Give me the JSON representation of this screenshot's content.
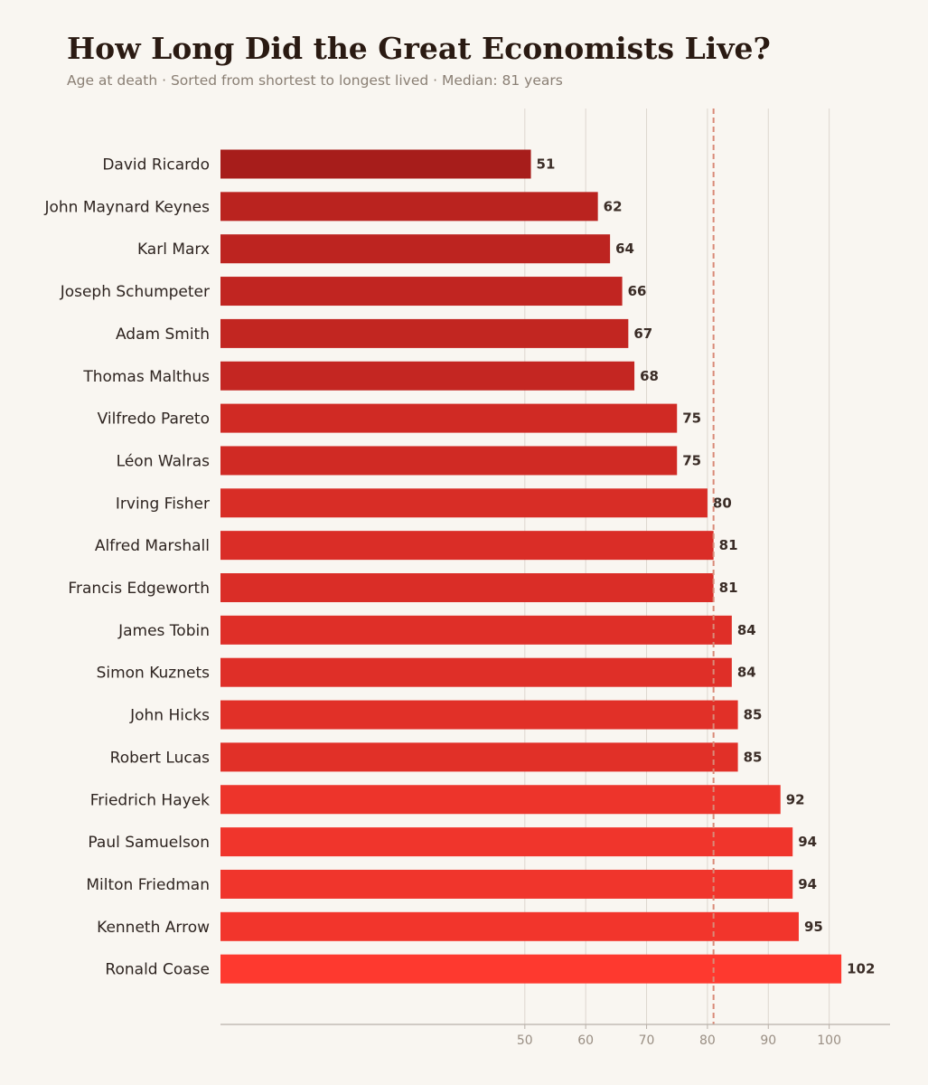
{
  "header": {
    "title": "How Long Did the Great Economists Live?",
    "subtitle": "Age at death  ·  Sorted from shortest to longest lived  ·  Median: 81 years"
  },
  "colors": {
    "bar_dark": "#a71d1b",
    "bar_light": "#fe392f",
    "median_line": "#d98a78",
    "grid": "#ddd6cf",
    "axis": "#b9b1a9"
  },
  "chart_data": {
    "type": "bar",
    "orientation": "horizontal",
    "title": "How Long Did the Great Economists Live?",
    "xlabel": "",
    "ylabel": "",
    "xlim": [
      0,
      110
    ],
    "xticks": [
      50,
      60,
      70,
      80,
      90,
      100
    ],
    "median": 81,
    "grid": true,
    "categories": [
      "David Ricardo",
      "John Maynard Keynes",
      "Karl Marx",
      "Joseph Schumpeter",
      "Adam Smith",
      "Thomas Malthus",
      "Vilfredo Pareto",
      "Léon Walras",
      "Irving Fisher",
      "Alfred Marshall",
      "Francis Edgeworth",
      "James Tobin",
      "Simon Kuznets",
      "John Hicks",
      "Robert Lucas",
      "Friedrich Hayek",
      "Paul Samuelson",
      "Milton Friedman",
      "Kenneth Arrow",
      "Ronald Coase"
    ],
    "values": [
      51,
      62,
      64,
      66,
      67,
      68,
      75,
      75,
      80,
      81,
      81,
      84,
      84,
      85,
      85,
      92,
      94,
      94,
      95,
      102
    ]
  }
}
